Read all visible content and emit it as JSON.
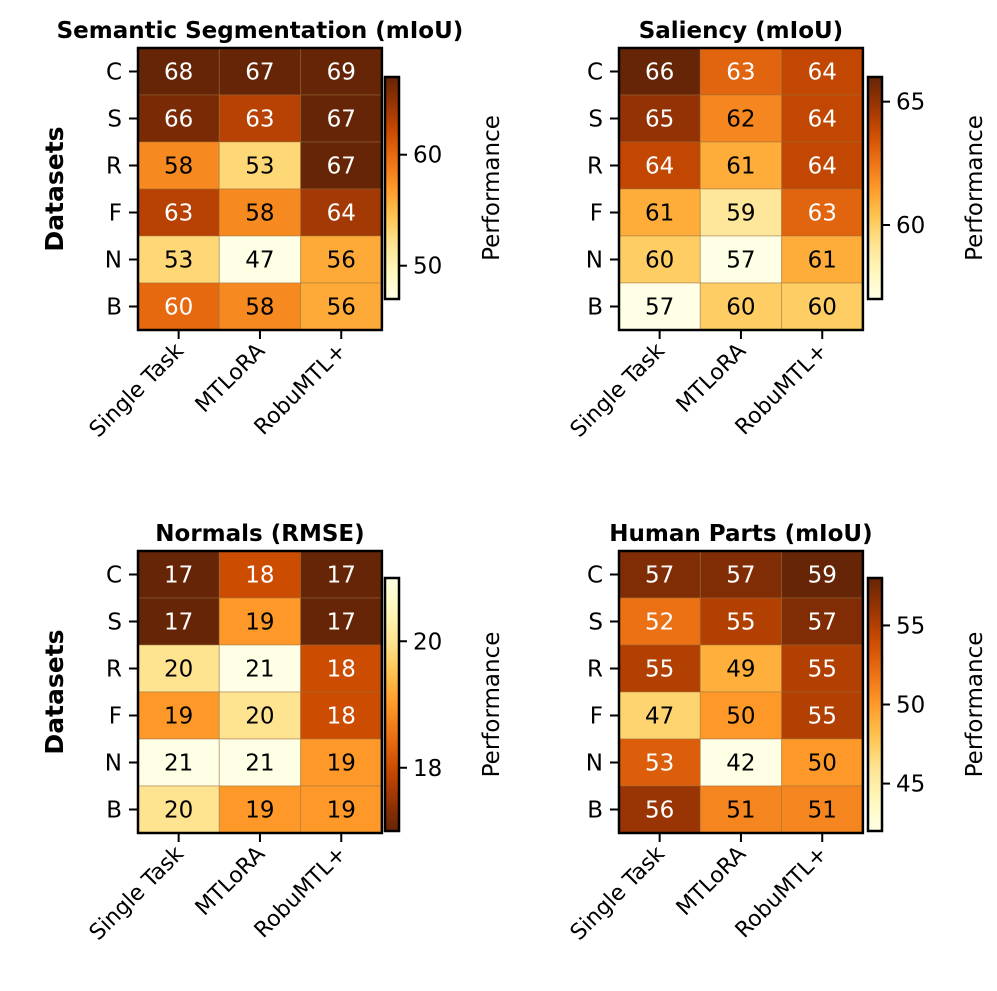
{
  "chart_data": [
    {
      "type": "heatmap",
      "title": "Semantic Segmentation (mIoU)",
      "xlabel": "",
      "ylabel": "Datasets",
      "x_categories": [
        "Single Task",
        "MTLoRA",
        "RobuMTL+"
      ],
      "y_categories": [
        "C",
        "S",
        "R",
        "F",
        "N",
        "B"
      ],
      "values": [
        [
          68,
          67,
          69
        ],
        [
          66,
          63,
          67
        ],
        [
          58,
          53,
          67
        ],
        [
          63,
          58,
          64
        ],
        [
          53,
          47,
          56
        ],
        [
          60,
          58,
          56
        ]
      ],
      "colorbar_label": "Performance",
      "colorbar_ticks": [
        50,
        60
      ],
      "color_range": [
        47,
        67
      ],
      "reversed": false
    },
    {
      "type": "heatmap",
      "title": "Saliency (mIoU)",
      "xlabel": "",
      "ylabel": "",
      "x_categories": [
        "Single Task",
        "MTLoRA",
        "RobuMTL+"
      ],
      "y_categories": [
        "C",
        "S",
        "R",
        "F",
        "N",
        "B"
      ],
      "values": [
        [
          66,
          63,
          64
        ],
        [
          65,
          62,
          64
        ],
        [
          64,
          61,
          64
        ],
        [
          61,
          59,
          63
        ],
        [
          60,
          57,
          61
        ],
        [
          57,
          60,
          60
        ]
      ],
      "colorbar_label": "Performance",
      "colorbar_ticks": [
        60,
        65
      ],
      "color_range": [
        57,
        66
      ],
      "reversed": false
    },
    {
      "type": "heatmap",
      "title": "Normals (RMSE)",
      "xlabel": "",
      "ylabel": "Datasets",
      "x_categories": [
        "Single Task",
        "MTLoRA",
        "RobuMTL+"
      ],
      "y_categories": [
        "C",
        "S",
        "R",
        "F",
        "N",
        "B"
      ],
      "values": [
        [
          17,
          18,
          17
        ],
        [
          17,
          19,
          17
        ],
        [
          20,
          21,
          18
        ],
        [
          19,
          20,
          18
        ],
        [
          21,
          21,
          19
        ],
        [
          20,
          19,
          19
        ]
      ],
      "colorbar_label": "Performance",
      "colorbar_ticks": [
        18,
        20
      ],
      "color_range": [
        17,
        21
      ],
      "reversed": true
    },
    {
      "type": "heatmap",
      "title": "Human Parts (mIoU)",
      "xlabel": "",
      "ylabel": "",
      "x_categories": [
        "Single Task",
        "MTLoRA",
        "RobuMTL+"
      ],
      "y_categories": [
        "C",
        "S",
        "R",
        "F",
        "N",
        "B"
      ],
      "values": [
        [
          57,
          57,
          59
        ],
        [
          52,
          55,
          57
        ],
        [
          55,
          49,
          55
        ],
        [
          47,
          50,
          55
        ],
        [
          53,
          42,
          50
        ],
        [
          56,
          51,
          51
        ]
      ],
      "colorbar_label": "Performance",
      "colorbar_ticks": [
        45,
        50,
        55
      ],
      "color_range": [
        42,
        58
      ],
      "reversed": false
    }
  ],
  "colormap": "YlOrBr",
  "colormap_stops": [
    "#ffffe5",
    "#fff7bc",
    "#fee391",
    "#fec44f",
    "#fe9929",
    "#ec7014",
    "#cc4c02",
    "#993404",
    "#662506"
  ]
}
